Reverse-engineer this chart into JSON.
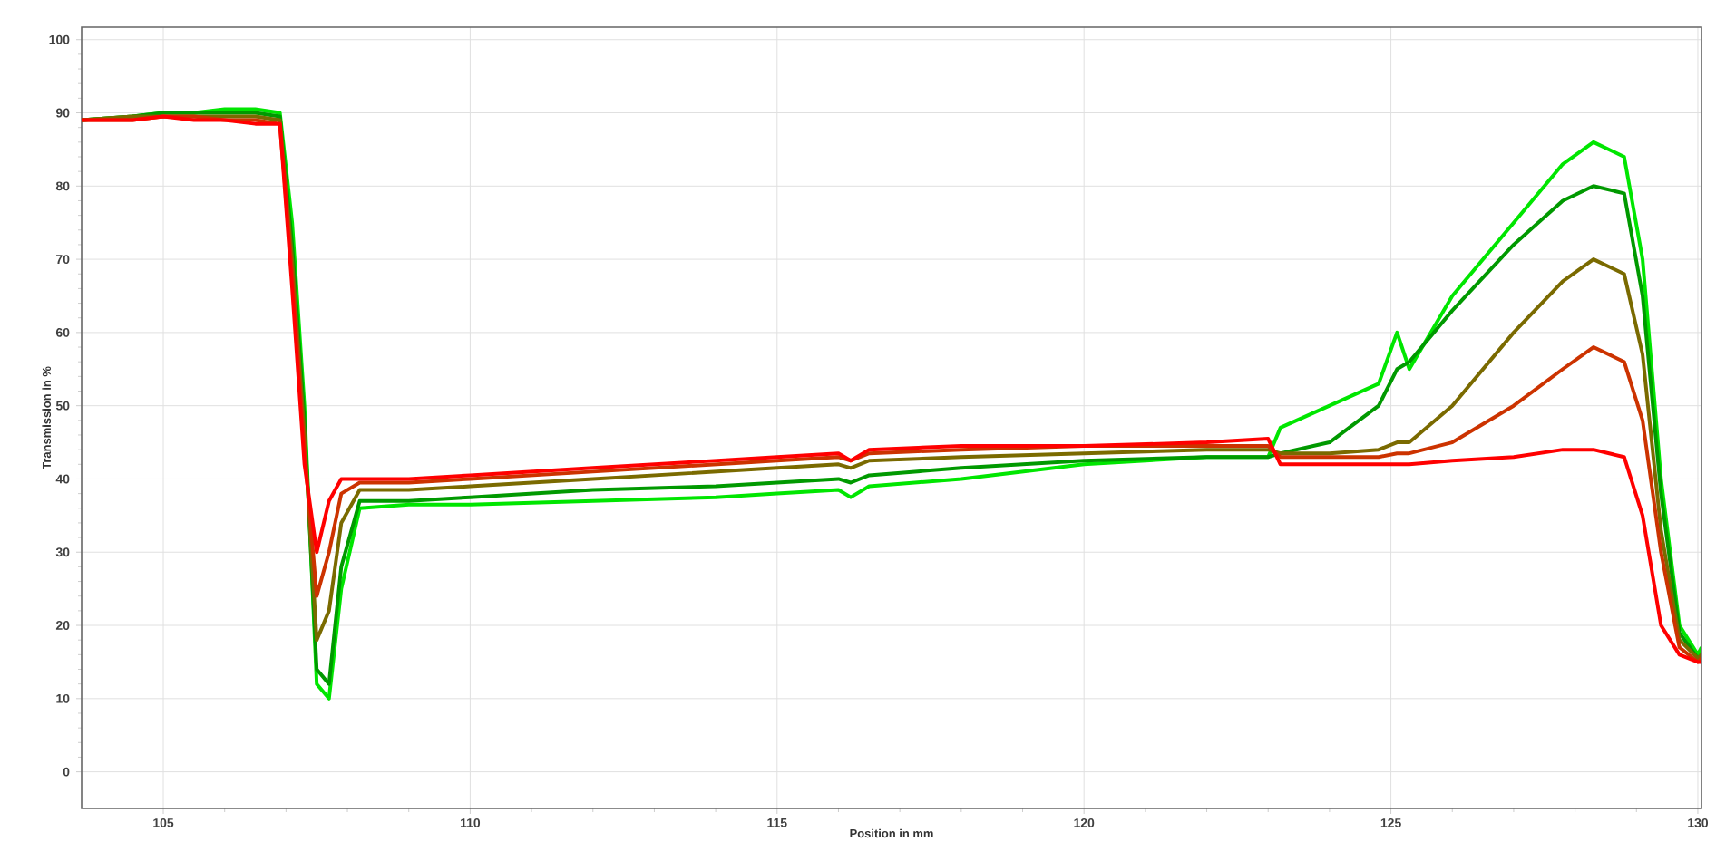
{
  "chart_data": {
    "type": "line",
    "xlabel": "Position in mm",
    "ylabel": "Transmission in %",
    "x": [
      103.67,
      104.5,
      105,
      105.5,
      106,
      106.5,
      106.9,
      107.1,
      107.3,
      107.5,
      107.7,
      107.9,
      108.2,
      109,
      110,
      112,
      114,
      115,
      116,
      116.2,
      116.5,
      118,
      120,
      122,
      123,
      123.2,
      124,
      124.8,
      125.1,
      125.3,
      126,
      127,
      127.8,
      128.3,
      128.8,
      129.1,
      129.4,
      129.7,
      130,
      130.06
    ],
    "series": [
      {
        "color": "#00e600",
        "values": [
          89,
          89.5,
          90,
          90,
          90.5,
          90.5,
          90,
          75,
          50,
          12,
          10,
          25,
          36,
          36.5,
          36.5,
          37,
          37.5,
          38,
          38.5,
          37.5,
          39,
          40,
          42,
          43,
          43,
          47,
          50,
          53,
          60,
          55,
          65,
          75,
          83,
          86,
          84,
          70,
          40,
          20,
          16,
          17
        ]
      },
      {
        "color": "#009900",
        "values": [
          89,
          89.5,
          90,
          90,
          90,
          90,
          89.5,
          72,
          48,
          14,
          12,
          28,
          37,
          37,
          37.5,
          38.5,
          39,
          39.5,
          40,
          39.5,
          40.5,
          41.5,
          42.5,
          43,
          43,
          43.5,
          45,
          50,
          55,
          56,
          63,
          72,
          78,
          80,
          79,
          65,
          38,
          19,
          15.5,
          16
        ]
      },
      {
        "color": "#7a6a00",
        "values": [
          89,
          89.5,
          89.5,
          89.5,
          89.5,
          89.5,
          89,
          70,
          46,
          18,
          22,
          34,
          38.5,
          38.5,
          39,
          40,
          41,
          41.5,
          42,
          41.5,
          42.5,
          43,
          43.5,
          44,
          44,
          43.5,
          43.5,
          44,
          45,
          45,
          50,
          60,
          67,
          70,
          68,
          57,
          33,
          18,
          15.5,
          16
        ]
      },
      {
        "color": "#cc3300",
        "values": [
          89,
          89,
          89.5,
          89.5,
          89,
          89,
          88.5,
          68,
          44,
          24,
          30,
          38,
          39.5,
          39.5,
          40,
          41,
          42,
          42.5,
          43,
          42.5,
          43.5,
          44,
          44.5,
          44.5,
          44.5,
          43,
          43,
          43,
          43.5,
          43.5,
          45,
          50,
          55,
          58,
          56,
          48,
          30,
          17,
          15,
          15.5
        ]
      },
      {
        "color": "#ff0000",
        "values": [
          89,
          89,
          89.5,
          89,
          89,
          88.5,
          88.5,
          66,
          42,
          30,
          37,
          40,
          40,
          40,
          40.5,
          41.5,
          42.5,
          43,
          43.5,
          42.5,
          44,
          44.5,
          44.5,
          45,
          45.5,
          42,
          42,
          42,
          42,
          42,
          42.5,
          43,
          44,
          44,
          43,
          35,
          20,
          16,
          15,
          15
        ]
      }
    ],
    "xlim": [
      103.67,
      130.06
    ],
    "ylim": [
      -5,
      101.7
    ],
    "xticks": [
      105,
      110,
      115,
      120,
      125,
      130
    ],
    "yticks": [
      0,
      10,
      20,
      30,
      40,
      50,
      60,
      70,
      80,
      90,
      100
    ],
    "grid": true,
    "marker": "none",
    "line_style": "solid"
  }
}
